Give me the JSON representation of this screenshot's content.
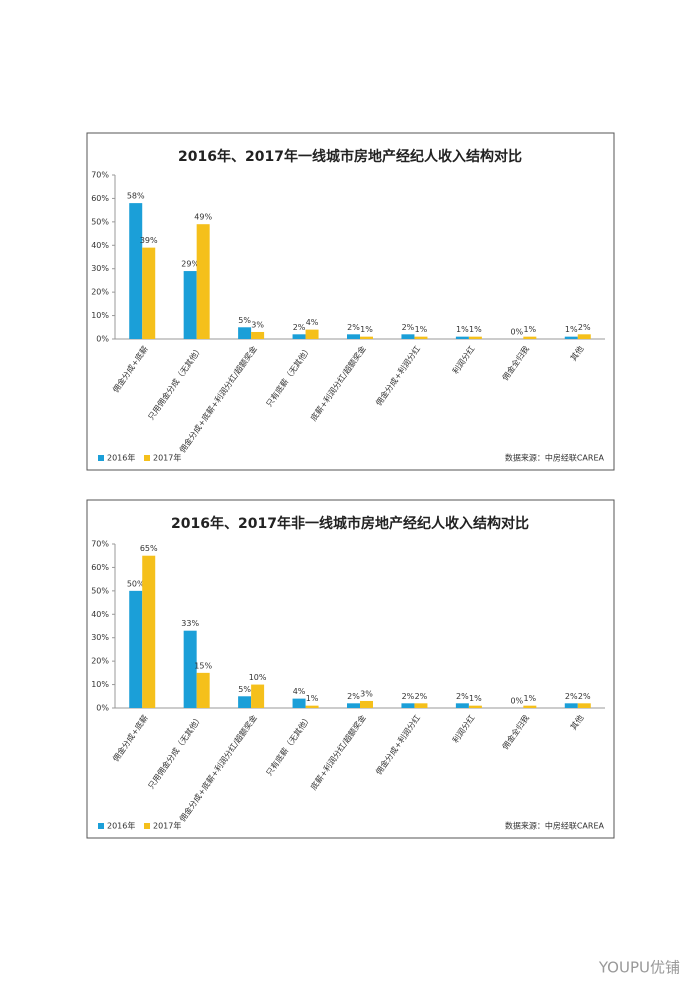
{
  "chart_data": [
    {
      "type": "bar",
      "title": "2016年、2017年一线城市房地产经纪人收入结构对比",
      "categories": [
        "佣金分成+底薪",
        "只用佣金分成（无其他）",
        "佣金分成+底薪+利润分红/超额奖金",
        "只有底薪（无其他）",
        "底薪+利润分红/超额奖金",
        "佣金分成+利润分红",
        "利润分红",
        "佣金全归我",
        "其他"
      ],
      "series": [
        {
          "name": "2016年",
          "color": "#1b9fd8",
          "values": [
            58,
            29,
            5,
            2,
            2,
            2,
            1,
            0,
            1
          ],
          "value_labels": [
            "58%",
            "29%",
            "5%",
            "2%",
            "2%",
            "2%",
            "1%",
            "0%",
            "1%"
          ]
        },
        {
          "name": "2017年",
          "color": "#f5c01b",
          "values": [
            39,
            49,
            3,
            4,
            1,
            1,
            1,
            1,
            2
          ],
          "value_labels": [
            "39%",
            "49%",
            "3%",
            "4%",
            "1%",
            "1%",
            "1%",
            "1%",
            "2%"
          ]
        }
      ],
      "ylim": [
        0,
        70
      ],
      "yticks": [
        {
          "value": 0,
          "label": "0%"
        },
        {
          "value": 10,
          "label": "10%"
        },
        {
          "value": 20,
          "label": "20%"
        },
        {
          "value": 30,
          "label": "30%"
        },
        {
          "value": 40,
          "label": "40%"
        },
        {
          "value": 50,
          "label": "50%"
        },
        {
          "value": 60,
          "label": "60%"
        },
        {
          "value": 70,
          "label": "70%"
        }
      ],
      "source": "数据来源：中房经联CAREA",
      "legend": "bottom-left"
    },
    {
      "type": "bar",
      "title": "2016年、2017年非一线城市房地产经纪人收入结构对比",
      "categories": [
        "佣金分成+底薪",
        "只用佣金分成（无其他）",
        "佣金分成+底薪+利润分红/超额奖金",
        "只有底薪（无其他）",
        "底薪+利润分红/超额奖金",
        "佣金分成+利润分红",
        "利润分红",
        "佣金全归我",
        "其他"
      ],
      "series": [
        {
          "name": "2016年",
          "color": "#1b9fd8",
          "values": [
            50,
            33,
            5,
            4,
            2,
            2,
            2,
            0,
            2
          ],
          "value_labels": [
            "50%",
            "33%",
            "5%",
            "4%",
            "2%",
            "2%",
            "2%",
            "0%",
            "2%"
          ]
        },
        {
          "name": "2017年",
          "color": "#f5c01b",
          "values": [
            65,
            15,
            10,
            1,
            3,
            2,
            1,
            1,
            2
          ],
          "value_labels": [
            "65%",
            "15%",
            "10%",
            "1%",
            "3%",
            "2%",
            "1%",
            "1%",
            "2%"
          ]
        }
      ],
      "ylim": [
        0,
        70
      ],
      "yticks": [
        {
          "value": 0,
          "label": "0%"
        },
        {
          "value": 10,
          "label": "10%"
        },
        {
          "value": 20,
          "label": "20%"
        },
        {
          "value": 30,
          "label": "30%"
        },
        {
          "value": 40,
          "label": "40%"
        },
        {
          "value": 50,
          "label": "50%"
        },
        {
          "value": 60,
          "label": "60%"
        },
        {
          "value": 70,
          "label": "70%"
        }
      ],
      "source": "数据来源：中房经联CAREA",
      "legend": "bottom-left"
    }
  ],
  "watermark": "YOUPU优铺"
}
